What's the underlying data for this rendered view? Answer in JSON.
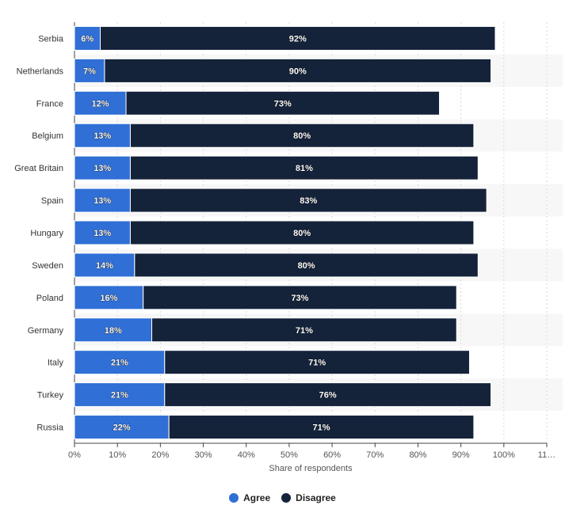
{
  "chart_data": {
    "type": "bar",
    "orientation": "horizontal",
    "stacked": true,
    "categories": [
      "Serbia",
      "Netherlands",
      "France",
      "Belgium",
      "Great Britain",
      "Spain",
      "Hungary",
      "Sweden",
      "Poland",
      "Germany",
      "Italy",
      "Turkey",
      "Russia"
    ],
    "series": [
      {
        "name": "Agree",
        "values": [
          6,
          7,
          12,
          13,
          13,
          13,
          13,
          14,
          16,
          18,
          21,
          21,
          22
        ],
        "color": "#2f6fd6"
      },
      {
        "name": "Disagree",
        "values": [
          92,
          90,
          73,
          80,
          81,
          83,
          80,
          80,
          73,
          71,
          71,
          76,
          71
        ],
        "color": "#14233a"
      }
    ],
    "value_suffix": "%",
    "xlabel": "Share of respondents",
    "xlim": [
      0,
      110
    ],
    "xticks": [
      "0%",
      "10%",
      "20%",
      "30%",
      "40%",
      "50%",
      "60%",
      "70%",
      "80%",
      "90%",
      "100%",
      "11…"
    ],
    "grid": true,
    "legend_position": "bottom"
  }
}
